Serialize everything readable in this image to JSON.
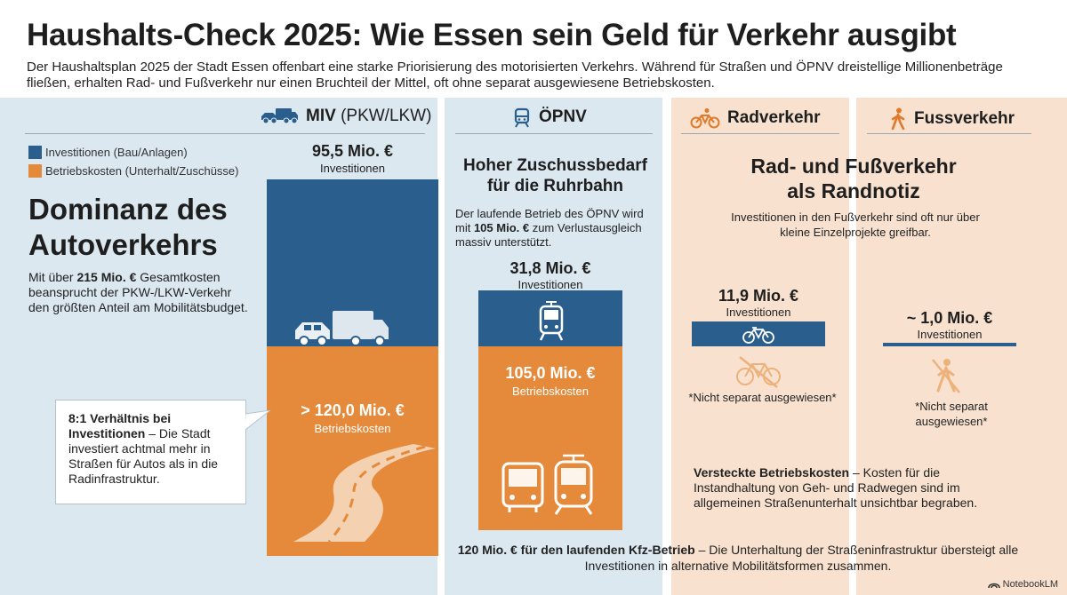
{
  "header": {
    "title": "Haushalts-Check 2025: Wie Essen sein Geld für Verkehr ausgibt",
    "subtitle": "Der Haushaltsplan 2025 der Stadt Essen offenbart eine starke Priorisierung des motorisierten Verkehrs. Während für Straßen und ÖPNV dreistellige Millionenbeträge fließen, erhalten Rad- und Fußverkehr nur einen Bruchteil der Mittel, oft ohne separat ausgewiesene Betriebskosten."
  },
  "legend": {
    "investitionen": "Investitionen (Bau/Anlagen)",
    "betrieb": "Betriebskosten (Unterhalt/Zuschüsse)"
  },
  "colors": {
    "investitionen": "#2a5e8c",
    "betrieb": "#e58a3a",
    "panel_blue": "#dbe8f0",
    "panel_orange": "#f8e2cf"
  },
  "columns": {
    "miv": {
      "name": "MIV",
      "qualifier": "(PKW/LKW)",
      "heading_line1": "Dominanz des",
      "heading_line2": "Autoverkehrs",
      "text_pre": "Mit über ",
      "text_bold": "215 Mio. €",
      "text_post": " Gesamtkosten beansprucht der PKW-/LKW-Verkehr den größten Anteil am Mobilitätsbudget.",
      "invest_value": "95,5 Mio. €",
      "invest_label": "Investitionen",
      "betrieb_value": "> 120,0 Mio. €",
      "betrieb_label": "Betriebskosten"
    },
    "oepnv": {
      "name": "ÖPNV",
      "heading": "Hoher Zuschussbedarf für die Ruhrbahn",
      "text_pre": "Der laufende Betrieb des ÖPNV wird mit ",
      "text_bold": "105 Mio. €",
      "text_post": " zum Verlustausgleich massiv unterstützt.",
      "invest_value": "31,8 Mio. €",
      "invest_label": "Investitionen",
      "betrieb_value": "105,0 Mio. €",
      "betrieb_label": "Betriebskosten"
    },
    "rad": {
      "name": "Radverkehr",
      "invest_value": "11,9 Mio. €",
      "invest_label": "Investitionen",
      "betrieb_note": "*Nicht separat ausgewiesen*"
    },
    "fuss": {
      "name": "Fussverkehr",
      "invest_value": "~ 1,0 Mio. €",
      "invest_label": "Investitionen",
      "betrieb_note_line1": "*Nicht separat",
      "betrieb_note_line2": "ausgewiesen*"
    },
    "rad_fuss": {
      "heading_line1": "Rad- und Fußverkehr",
      "heading_line2": "als Randnotiz",
      "text": "Investitionen in den Fußverkehr sind oft nur über kleine Einzelprojekte greifbar.",
      "hidden_bold": "Versteckte Betriebskosten",
      "hidden_text": " – Kosten für die Instandhaltung von Geh- und Radwegen sind im allgemeinen Straßenunterhalt unsichtbar begraben."
    }
  },
  "callout": {
    "bold": "8:1 Verhältnis bei Investitionen",
    "text": " – Die Stadt investiert achtmal mehr in Straßen für Autos als in die Radinfrastruktur."
  },
  "footer": {
    "bold": "120 Mio. € für den laufenden Kfz-Betrieb",
    "text": " – Die Unterhaltung der Straßeninfrastruktur übersteigt alle Investitionen in alternative Mobilitätsformen zusammen."
  },
  "brand": "NotebookLM",
  "chart_data": {
    "type": "bar",
    "stacked": "diverging",
    "categories": [
      "MIV (PKW/LKW)",
      "ÖPNV",
      "Radverkehr",
      "Fussverkehr"
    ],
    "unit": "Mio. €",
    "series": [
      {
        "name": "Investitionen (Bau/Anlagen)",
        "values": [
          95.5,
          31.8,
          11.9,
          1.0
        ]
      },
      {
        "name": "Betriebskosten (Unterhalt/Zuschüsse)",
        "values": [
          120.0,
          105.0,
          null,
          null
        ]
      }
    ],
    "legend_position": "top-left",
    "grid": false
  }
}
